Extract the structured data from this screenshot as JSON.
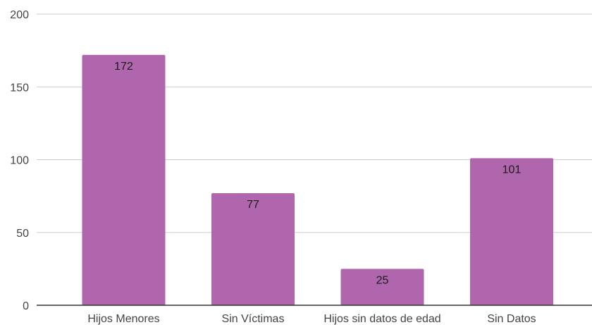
{
  "chart_data": {
    "type": "bar",
    "title": "",
    "xlabel": "",
    "ylabel": "",
    "categories": [
      "Hijos Menores",
      "Sin Víctimas",
      "Hijos sin datos de edad",
      "Sin Datos"
    ],
    "values": [
      172,
      77,
      25,
      101
    ],
    "ylim": [
      0,
      200
    ],
    "yticks": [
      0,
      50,
      100,
      150,
      200
    ],
    "grid": true,
    "legend": "none",
    "data_labels": true,
    "bar_color": "#b066ac"
  }
}
